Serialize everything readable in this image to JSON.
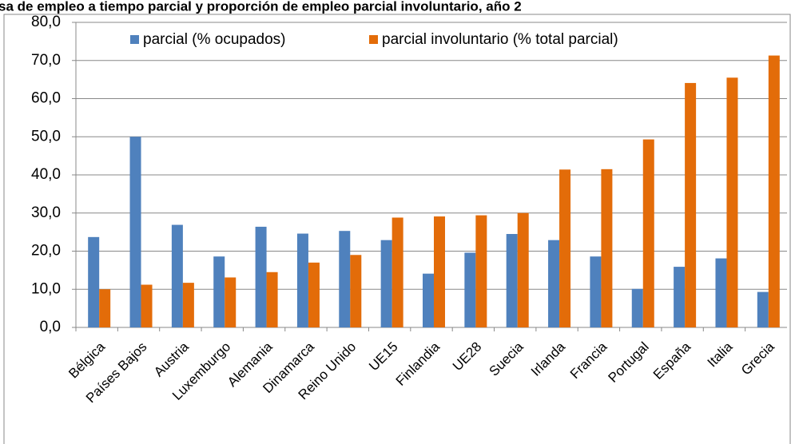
{
  "chart_data": {
    "type": "bar",
    "title": "sa de empleo a tiempo parcial y proporción de empleo parcial involuntario, año 2",
    "categories": [
      "Bélgica",
      "Países Bajos",
      "Austria",
      "Luxemburgo",
      "Alemania",
      "Dinamarca",
      "Reino Unido",
      "UE15",
      "Finlandia",
      "UE28",
      "Suecia",
      "Irlanda",
      "Francia",
      "Portugal",
      "España",
      "Italia",
      "Grecia"
    ],
    "series": [
      {
        "name": "parcial (% ocupados)",
        "color": "#4f81bd",
        "values": [
          23.7,
          50.0,
          26.9,
          18.6,
          26.4,
          24.6,
          25.3,
          22.9,
          14.1,
          19.6,
          24.5,
          22.9,
          18.6,
          10.1,
          15.9,
          18.1,
          9.3
        ]
      },
      {
        "name": "parcial involuntario (% total parcial)",
        "color": "#e36c09",
        "values": [
          10.0,
          11.2,
          11.7,
          13.1,
          14.5,
          17.0,
          19.0,
          28.8,
          29.1,
          29.4,
          30.0,
          41.4,
          41.5,
          49.3,
          64.1,
          65.5,
          71.3
        ]
      }
    ],
    "ylim": [
      0,
      80
    ],
    "yticks": [
      {
        "value": 0,
        "label": "0,0"
      },
      {
        "value": 10,
        "label": "10,0"
      },
      {
        "value": 20,
        "label": "20,0"
      },
      {
        "value": 30,
        "label": "30,0"
      },
      {
        "value": 40,
        "label": "40,0"
      },
      {
        "value": 50,
        "label": "50,0"
      },
      {
        "value": 60,
        "label": "60,0"
      },
      {
        "value": 70,
        "label": "70,0"
      },
      {
        "value": 80,
        "label": "80,0"
      }
    ],
    "grid": true
  }
}
